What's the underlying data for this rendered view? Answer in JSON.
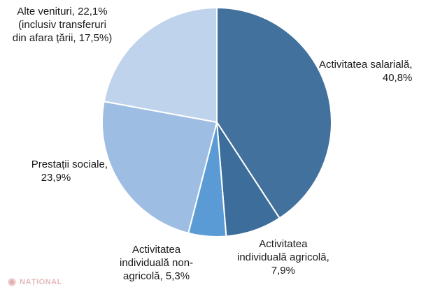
{
  "chart_data": {
    "type": "pie",
    "title": "",
    "slices": [
      {
        "label": "Activitatea salarială,",
        "value_label": "40,8%",
        "value": 40.8,
        "color": "#41719c"
      },
      {
        "label": "Activitatea individuală agricolă,",
        "value_label": "7,9%",
        "value": 7.9,
        "color": "#3c6d9b"
      },
      {
        "label": "Activitatea individuală non-agricolă,",
        "value_label": "5,3%",
        "value": 5.3,
        "color": "#5b9bd5"
      },
      {
        "label": "Prestații sociale,",
        "value_label": "23,9%",
        "value": 23.9,
        "color": "#9ebde2"
      },
      {
        "label": "Alte venituri, 22,1% (inclusiv transferuri din afara țării, 17,5%)",
        "value_label": "22,1%",
        "value": 22.1,
        "color": "#c0d3ec"
      }
    ]
  },
  "labels": {
    "salariala": [
      "Activitatea salarială,",
      "40,8%"
    ],
    "agricola": [
      "Activitatea",
      "individuală agricolă,",
      "7,9%"
    ],
    "nonagricola": [
      "Activitatea",
      "individuală non-",
      "agricolă, 5,3%"
    ],
    "sociale": [
      "Prestații sociale,",
      "23,9%"
    ],
    "alte": [
      "Alte venituri, 22,1%",
      "(inclusiv transferuri",
      "din afara țării, 17,5%)"
    ]
  },
  "watermark": {
    "text": "NAȚIONAL",
    "color": "#d9a3a3"
  }
}
